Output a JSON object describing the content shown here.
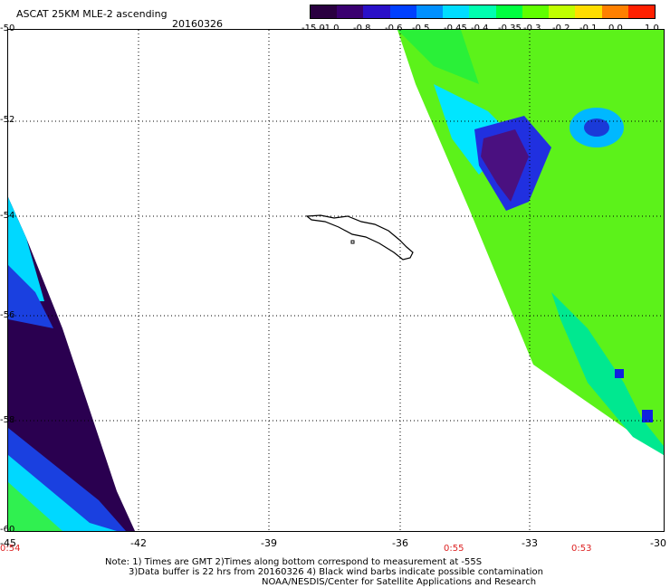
{
  "header": {
    "title": "ASCAT 25KM MLE-2 ascending",
    "date": "20160326"
  },
  "colorbar": {
    "labels": [
      "-15.0",
      "-1.0",
      "-0.8",
      "-0.6",
      "-0.5",
      "-0.45",
      "-0.4",
      "-0.35",
      "-0.3",
      "-0.2",
      "-0.1",
      "0.0",
      "1.0"
    ],
    "colors": [
      "#2a0040",
      "#3a0070",
      "#2a10c8",
      "#0040ff",
      "#0090ff",
      "#00ddff",
      "#00ffb0",
      "#00ff40",
      "#60ff00",
      "#c0ff00",
      "#ffdd00",
      "#ff8000",
      "#ff2000"
    ]
  },
  "axes": {
    "lat_labels": [
      "-50",
      "-52",
      "-54",
      "-56",
      "-58",
      "-60"
    ],
    "lon_labels": [
      "-45",
      "-42",
      "-39",
      "-36",
      "-33",
      "-30"
    ],
    "time_labels": [
      "0:54",
      "0:55",
      "0:53"
    ]
  },
  "notes": {
    "line1": "Note: 1) Times are GMT 2)Times along bottom correspond to measurement at -55S",
    "line2": "3)Data buffer is 22 hrs from 20160326 4) Black wind barbs indicate possible contamination",
    "line3": "NOAA/NESDIS/Center for Satellite Applications and Research"
  }
}
